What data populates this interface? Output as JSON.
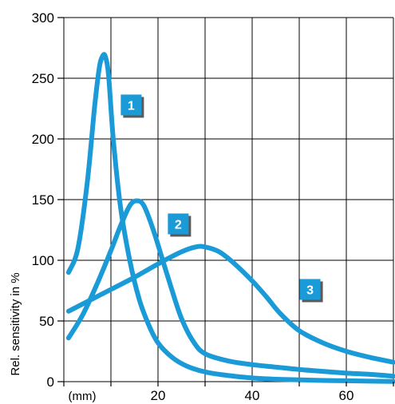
{
  "chart_data": {
    "type": "line",
    "title": "",
    "xlabel": "(mm)",
    "ylabel": "Rel. sensitivity in %",
    "xlim": [
      0,
      70
    ],
    "ylim": [
      0,
      300
    ],
    "x_ticks": [
      0,
      10,
      20,
      30,
      40,
      50,
      60,
      70
    ],
    "x_tick_labels": [
      {
        "value": 20,
        "label": "20"
      },
      {
        "value": 40,
        "label": "40"
      },
      {
        "value": 60,
        "label": "60"
      }
    ],
    "y_ticks": [
      0,
      50,
      100,
      150,
      200,
      250,
      300
    ],
    "y_tick_labels": [
      "0",
      "50",
      "100",
      "150",
      "200",
      "250",
      "300"
    ],
    "grid": true,
    "series": [
      {
        "name": "1",
        "color": "#1a9ad6",
        "label_at": [
          14.3,
          228
        ],
        "x": [
          1,
          3,
          5,
          6.5,
          7.5,
          8.2,
          8.8,
          9.5,
          10.5,
          12,
          14,
          16,
          18,
          20,
          23,
          26,
          30,
          35,
          40,
          45,
          50,
          55,
          60,
          65,
          70
        ],
        "y": [
          90,
          110,
          165,
          225,
          258,
          268,
          268,
          252,
          200,
          145,
          100,
          68,
          47,
          32,
          20,
          13,
          8,
          5,
          3,
          2,
          1.5,
          1,
          0.7,
          0.4,
          0.2
        ]
      },
      {
        "name": "2",
        "color": "#1a9ad6",
        "label_at": [
          24.3,
          130
        ],
        "x": [
          1,
          4,
          7,
          10,
          12,
          14,
          15.5,
          17,
          19,
          21,
          23,
          25,
          27.5,
          30,
          35,
          40,
          45,
          50,
          55,
          60,
          65,
          70
        ],
        "y": [
          36,
          55,
          80,
          108,
          128,
          145,
          149,
          145,
          125,
          100,
          75,
          52,
          33,
          23,
          17,
          14,
          12,
          10,
          8.5,
          7,
          6,
          4.5
        ]
      },
      {
        "name": "3",
        "color": "#1a9ad6",
        "label_at": [
          52.3,
          76
        ],
        "x": [
          1,
          5,
          10,
          15,
          20,
          25,
          28,
          30,
          33,
          36,
          40,
          43,
          46,
          50,
          55,
          60,
          65,
          70
        ],
        "y": [
          58,
          66,
          76,
          86,
          97,
          107,
          111,
          111,
          107,
          98,
          83,
          70,
          56,
          42,
          32,
          25,
          20,
          16
        ]
      }
    ]
  }
}
